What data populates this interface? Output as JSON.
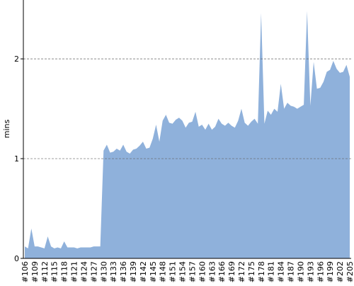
{
  "chart_data": {
    "type": "area",
    "y_label": "mins",
    "categories": [
      "#106",
      null,
      null,
      "#109",
      null,
      null,
      "#112",
      null,
      null,
      "#115",
      null,
      null,
      "#118",
      null,
      null,
      "#121",
      null,
      null,
      "#124",
      null,
      null,
      "#127",
      null,
      null,
      "#130",
      null,
      null,
      "#133",
      null,
      null,
      "#136",
      null,
      null,
      "#139",
      null,
      null,
      "#142",
      null,
      null,
      "#145",
      null,
      null,
      "#148",
      null,
      null,
      "#151",
      null,
      null,
      "#154",
      null,
      null,
      "#157",
      null,
      null,
      "#160",
      null,
      null,
      "#163",
      null,
      null,
      "#166",
      null,
      null,
      "#169",
      null,
      null,
      "#172",
      null,
      null,
      "#175",
      null,
      null,
      "#178",
      null,
      null,
      "#181",
      null,
      null,
      "#184",
      null,
      null,
      "#187",
      null,
      null,
      "#190",
      null,
      null,
      "#193",
      null,
      null,
      "#196",
      null,
      null,
      "#199",
      null,
      null,
      "#202",
      null,
      null,
      "#205"
    ],
    "values": [
      0.12,
      0.1,
      0.3,
      0.12,
      0.12,
      0.11,
      0.1,
      0.22,
      0.12,
      0.1,
      0.11,
      0.1,
      0.17,
      0.11,
      0.11,
      0.11,
      0.1,
      0.11,
      0.11,
      0.11,
      0.11,
      0.12,
      0.12,
      0.12,
      1.08,
      1.14,
      1.06,
      1.07,
      1.1,
      1.08,
      1.14,
      1.07,
      1.05,
      1.09,
      1.1,
      1.13,
      1.17,
      1.1,
      1.11,
      1.2,
      1.34,
      1.17,
      1.38,
      1.44,
      1.36,
      1.35,
      1.39,
      1.41,
      1.38,
      1.31,
      1.36,
      1.37,
      1.47,
      1.32,
      1.34,
      1.29,
      1.35,
      1.29,
      1.32,
      1.4,
      1.35,
      1.33,
      1.36,
      1.33,
      1.31,
      1.38,
      1.5,
      1.36,
      1.33,
      1.37,
      1.4,
      1.35,
      2.46,
      1.35,
      1.48,
      1.44,
      1.5,
      1.47,
      1.75,
      1.5,
      1.56,
      1.53,
      1.52,
      1.5,
      1.52,
      1.54,
      2.48,
      1.53,
      1.97,
      1.7,
      1.71,
      1.77,
      1.87,
      1.89,
      1.98,
      1.9,
      1.86,
      1.87,
      1.94,
      1.82
    ],
    "color": "#8fb1db",
    "ylim": [
      0,
      2.59
    ],
    "yticks": [
      0,
      1,
      2
    ],
    "grid": true
  }
}
